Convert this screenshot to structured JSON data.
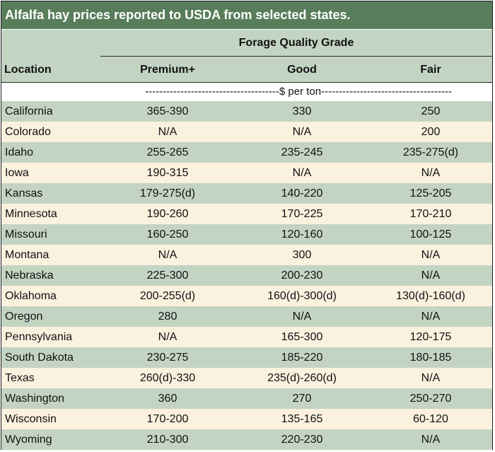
{
  "table": {
    "title": "Alfalfa hay prices reported to USDA from selected states.",
    "group_header": "Forage Quality Grade",
    "columns": [
      "Location",
      "Premium+",
      "Good",
      "Fair"
    ],
    "units": "--------------------------------------$ per ton-------------------------------------",
    "colors": {
      "title_bg": "#587d5a",
      "band_green": "#c4d4c3",
      "band_cream": "#fbf1df"
    },
    "rows": [
      [
        "California",
        "365-390",
        "330",
        "250"
      ],
      [
        "Colorado",
        "N/A",
        "N/A",
        "200"
      ],
      [
        "Idaho",
        "255-265",
        "235-245",
        "235-275(d)"
      ],
      [
        "Iowa",
        "190-315",
        "N/A",
        "N/A"
      ],
      [
        "Kansas",
        "179-275(d)",
        "140-220",
        "125-205"
      ],
      [
        "Minnesota",
        "190-260",
        "170-225",
        "170-210"
      ],
      [
        "Missouri",
        "160-250",
        "120-160",
        "100-125"
      ],
      [
        "Montana",
        "N/A",
        "300",
        "N/A"
      ],
      [
        "Nebraska",
        "225-300",
        "200-230",
        "N/A"
      ],
      [
        "Oklahoma",
        "200-255(d)",
        "160(d)-300(d)",
        "130(d)-160(d)"
      ],
      [
        "Oregon",
        "280",
        "N/A",
        "N/A"
      ],
      [
        "Pennsylvania",
        "N/A",
        "165-300",
        "120-175"
      ],
      [
        "South Dakota",
        "230-275",
        "185-220",
        "180-185"
      ],
      [
        "Texas",
        "260(d)-330",
        "235(d)-260(d)",
        "N/A"
      ],
      [
        "Washington",
        "360",
        "270",
        "250-270"
      ],
      [
        "Wisconsin",
        "170-200",
        "135-165",
        "60-120"
      ],
      [
        "Wyoming",
        "210-300",
        "220-230",
        "N/A"
      ]
    ]
  }
}
